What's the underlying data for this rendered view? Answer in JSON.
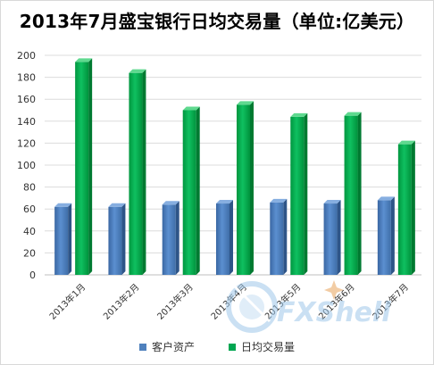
{
  "chart_data": {
    "type": "bar",
    "title": "2013年7月盛宝银行日均交易量（单位:亿美元）",
    "categories": [
      "2013年1月",
      "2013年2月",
      "2013年3月",
      "2013年4月",
      "2013年5月",
      "2013年6月",
      "2013年7月"
    ],
    "series": [
      {
        "name": "客户资产",
        "color": "#4f81bd",
        "values": [
          62,
          62,
          64,
          65,
          66,
          65,
          68
        ]
      },
      {
        "name": "日均交易量",
        "color": "#00a651",
        "values": [
          194,
          184,
          150,
          155,
          144,
          145,
          119
        ]
      }
    ],
    "ylim": [
      0,
      200
    ],
    "yticks": [
      0,
      20,
      40,
      60,
      80,
      100,
      120,
      140,
      160,
      180,
      200
    ],
    "grid": true,
    "legend_position": "bottom"
  },
  "watermark": {
    "text": "FXShell"
  }
}
